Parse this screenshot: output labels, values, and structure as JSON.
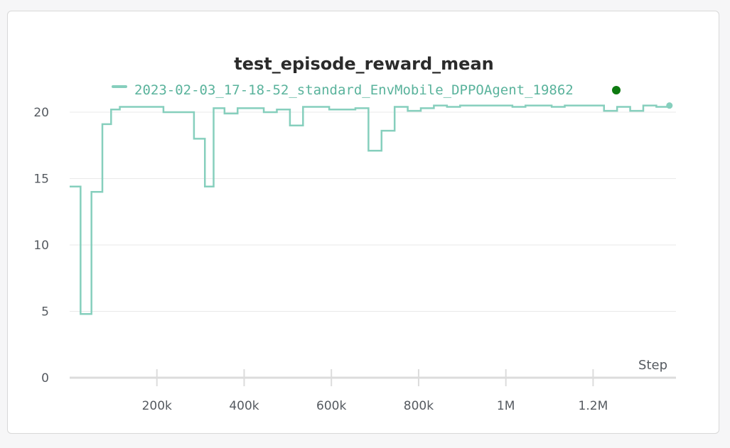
{
  "colors": {
    "series": "#86cfbd",
    "legend_text": "#5ab39c",
    "status_dot": "#0d7a10",
    "grid": "#e9e9e9",
    "axis": "#dcdcdc"
  },
  "chart_data": {
    "type": "line",
    "title": "test_episode_reward_mean",
    "xlabel": "Step",
    "ylabel": "",
    "xlim": [
      0,
      1390000
    ],
    "ylim": [
      0,
      21
    ],
    "xticks": [
      200000,
      400000,
      600000,
      800000,
      1000000,
      1200000
    ],
    "xtick_labels": [
      "200k",
      "400k",
      "600k",
      "800k",
      "1M",
      "1.2M"
    ],
    "yticks": [
      0,
      5,
      10,
      15,
      20
    ],
    "ytick_labels": [
      "0",
      "5",
      "10",
      "15",
      "20"
    ],
    "grid": true,
    "legend_position": "top",
    "step": true,
    "series": [
      {
        "name": "2023-02-03_17-18-52_standard_EnvMobile_DPPOAgent_19862",
        "x": [
          0,
          25000,
          50000,
          75000,
          95000,
          115000,
          145000,
          175000,
          215000,
          245000,
          285000,
          310000,
          330000,
          355000,
          385000,
          415000,
          445000,
          475000,
          505000,
          535000,
          565000,
          595000,
          625000,
          655000,
          685000,
          715000,
          745000,
          775000,
          805000,
          835000,
          865000,
          895000,
          925000,
          955000,
          985000,
          1015000,
          1045000,
          1075000,
          1105000,
          1135000,
          1165000,
          1195000,
          1225000,
          1255000,
          1285000,
          1315000,
          1345000,
          1375000
        ],
        "y": [
          14.4,
          4.8,
          14.0,
          19.1,
          20.2,
          20.4,
          20.4,
          20.4,
          20.0,
          20.0,
          18.0,
          14.4,
          20.3,
          19.9,
          20.3,
          20.3,
          20.0,
          20.2,
          19.0,
          20.4,
          20.4,
          20.2,
          20.2,
          20.3,
          17.1,
          18.6,
          20.4,
          20.1,
          20.3,
          20.5,
          20.4,
          20.5,
          20.5,
          20.5,
          20.5,
          20.4,
          20.5,
          20.5,
          20.4,
          20.5,
          20.5,
          20.5,
          20.1,
          20.4,
          20.1,
          20.5,
          20.4,
          20.5
        ]
      }
    ]
  }
}
